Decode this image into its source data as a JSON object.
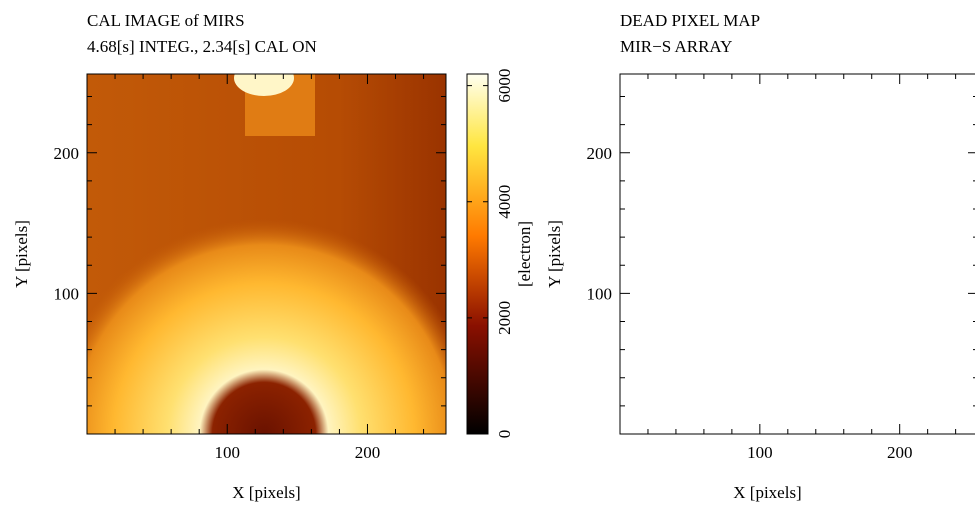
{
  "chart_data": [
    {
      "type": "heatmap",
      "title": "CAL IMAGE of MIRS",
      "subtitle": "4.68[s] INTEG., 2.34[s] CAL ON",
      "x_label": "X [pixels]",
      "y_label": "Y [pixels]",
      "xlim": [
        0,
        256
      ],
      "ylim": [
        0,
        256
      ],
      "xticks": [
        100,
        200
      ],
      "yticks": [
        100,
        200
      ],
      "minor_ticks": [
        20,
        40,
        60,
        80,
        120,
        140,
        160,
        180,
        220,
        240
      ],
      "colorbar": {
        "label": "[electron]",
        "lim": [
          0,
          6200
        ],
        "ticks": [
          0,
          2000,
          4000,
          6000
        ]
      }
    },
    {
      "type": "empty",
      "title": "DEAD PIXEL MAP",
      "subtitle": "MIR−S ARRAY",
      "x_label": "X [pixels]",
      "y_label": "Y [pixels]",
      "xlim": [
        0,
        256
      ],
      "ylim": [
        0,
        256
      ],
      "xticks": [
        100,
        200
      ],
      "yticks": [
        100,
        200
      ],
      "minor_ticks": [
        20,
        40,
        60,
        80,
        120,
        140,
        160,
        180,
        220,
        240
      ]
    }
  ]
}
